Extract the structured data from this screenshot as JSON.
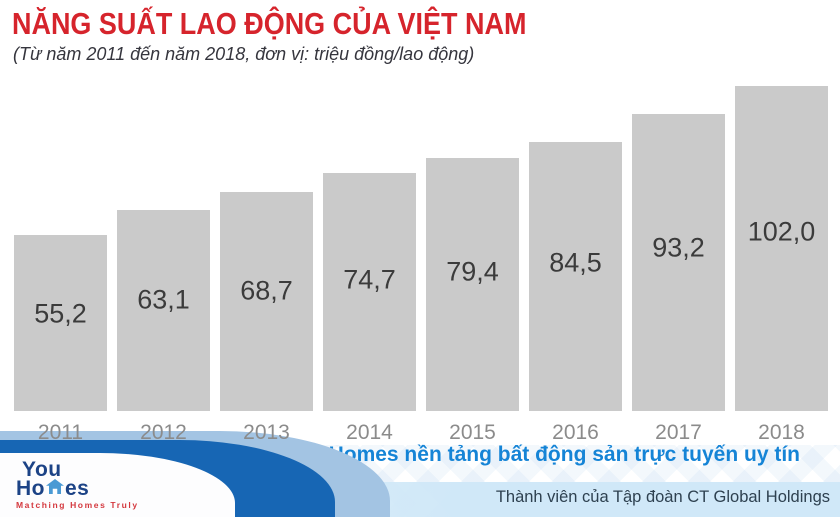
{
  "page": {
    "title": "NĂNG SUẤT LAO ĐỘNG CỦA VIỆT NAM",
    "subtitle": "(Từ năm 2011 đến năm 2018, đơn vị: triệu đồng/lao động)"
  },
  "chart_data": {
    "type": "bar",
    "title": "NĂNG SUẤT LAO ĐỘNG CỦA VIỆT NAM",
    "subtitle": "(Từ năm 2011 đến năm 2018, đơn vị: triệu đồng/lao động)",
    "unit": "triệu đồng/lao động",
    "categories": [
      "2011",
      "2012",
      "2013",
      "2014",
      "2015",
      "2016",
      "2017",
      "2018"
    ],
    "values": [
      55.2,
      63.1,
      68.7,
      74.7,
      79.4,
      84.5,
      93.2,
      102.0
    ],
    "value_labels": [
      "55,2",
      "63,1",
      "68,7",
      "74,7",
      "79,4",
      "84,5",
      "93,2",
      "102,0"
    ],
    "ylim": [
      0,
      102
    ],
    "grid": false,
    "legend": false,
    "bar_color": "#cacaca"
  },
  "footer": {
    "slogan": "YouHomes nền tảng bất động sản trực tuyến uy tín",
    "membership": "Thành viên của Tập đoàn CT Global Holdings",
    "logo": {
      "line1": "You",
      "line2_prefix": "Ho",
      "line2_suffix": "es",
      "tagline": "Matching Homes Truly"
    }
  },
  "colors": {
    "title_red": "#d6242c",
    "subtitle": "#35353d",
    "bar_fill": "#cacaca",
    "bar_value_text": "#3b3b3b",
    "year_text": "#8b8b8b",
    "slogan_blue": "#1584d6",
    "swoosh_dark": "#1766b4",
    "swoosh_light": "#a3c4e3",
    "logo_navy": "#1c4386",
    "house_blue": "#4a9ad4",
    "tagline_red": "#d4383e",
    "membership_bg": "#d0e8f8",
    "membership_text": "#2e4150"
  }
}
